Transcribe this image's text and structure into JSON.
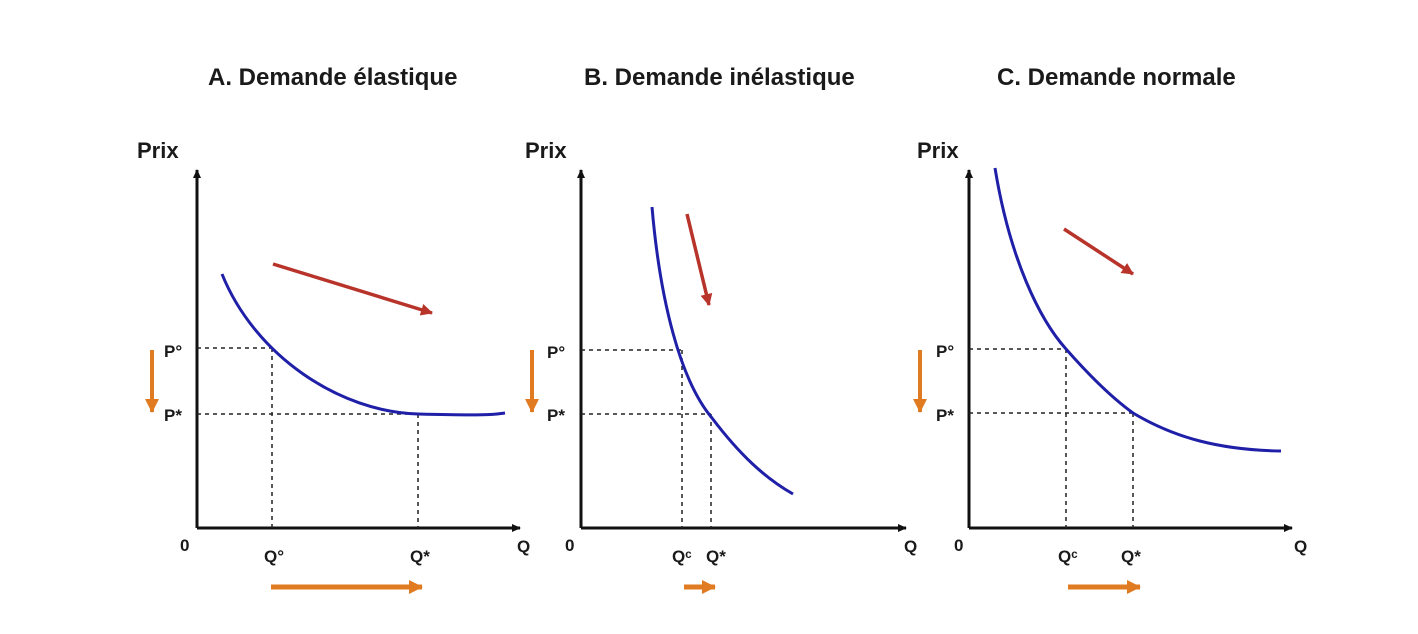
{
  "colors": {
    "curve": "#1f1fa8",
    "trend_arrow": "#b8332a",
    "shift_arrow": "#e07b22",
    "axis": "#111111",
    "guide": "#222222"
  },
  "chart_data": [
    {
      "type": "line",
      "title": "A. Demande élastique",
      "ylabel": "Prix",
      "xlabel": "Q",
      "origin_label": "0",
      "y_ticks": [
        "P°",
        "P*"
      ],
      "x_ticks": [
        "Q°",
        "Q*"
      ],
      "curve": "demand",
      "elasticity": "elastic",
      "legend": "none",
      "grid": false
    },
    {
      "type": "line",
      "title": "B. Demande inélastique",
      "ylabel": "Prix",
      "xlabel": "Q",
      "origin_label": "0",
      "y_ticks": [
        "P°",
        "P*"
      ],
      "x_ticks": [
        "Q<sup>c</sup>",
        "Q*"
      ],
      "x_ticks_plain": [
        "Qᶜ",
        "Q*"
      ],
      "curve": "demand",
      "elasticity": "inelastic",
      "legend": "none",
      "grid": false
    },
    {
      "type": "line",
      "title": "C. Demande normale",
      "ylabel": "Prix",
      "xlabel": "Q",
      "origin_label": "0",
      "y_ticks": [
        "P°",
        "P*"
      ],
      "x_ticks_plain": [
        "Qᶜ",
        "Q*"
      ],
      "curve": "demand",
      "elasticity": "normal",
      "legend": "none",
      "grid": false
    }
  ]
}
